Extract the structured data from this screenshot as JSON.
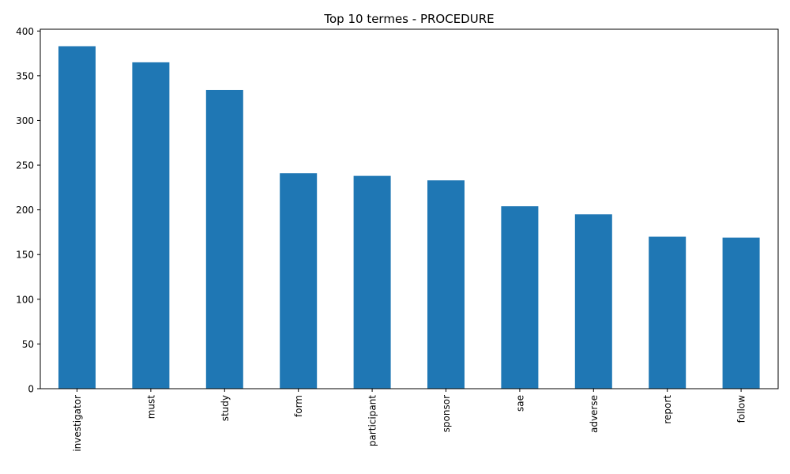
{
  "chart_data": {
    "type": "bar",
    "title": "Top 10 termes - PROCEDURE",
    "xlabel": "",
    "ylabel": "",
    "categories": [
      "investigator",
      "must",
      "study",
      "form",
      "participant",
      "sponsor",
      "sae",
      "adverse",
      "report",
      "follow"
    ],
    "values": [
      383,
      365,
      334,
      241,
      238,
      233,
      204,
      195,
      170,
      169
    ],
    "ylim": [
      0,
      402
    ],
    "yticks": [
      0,
      50,
      100,
      150,
      200,
      250,
      300,
      350,
      400
    ],
    "bar_color": "#1f77b4",
    "grid": false,
    "legend": "none"
  }
}
